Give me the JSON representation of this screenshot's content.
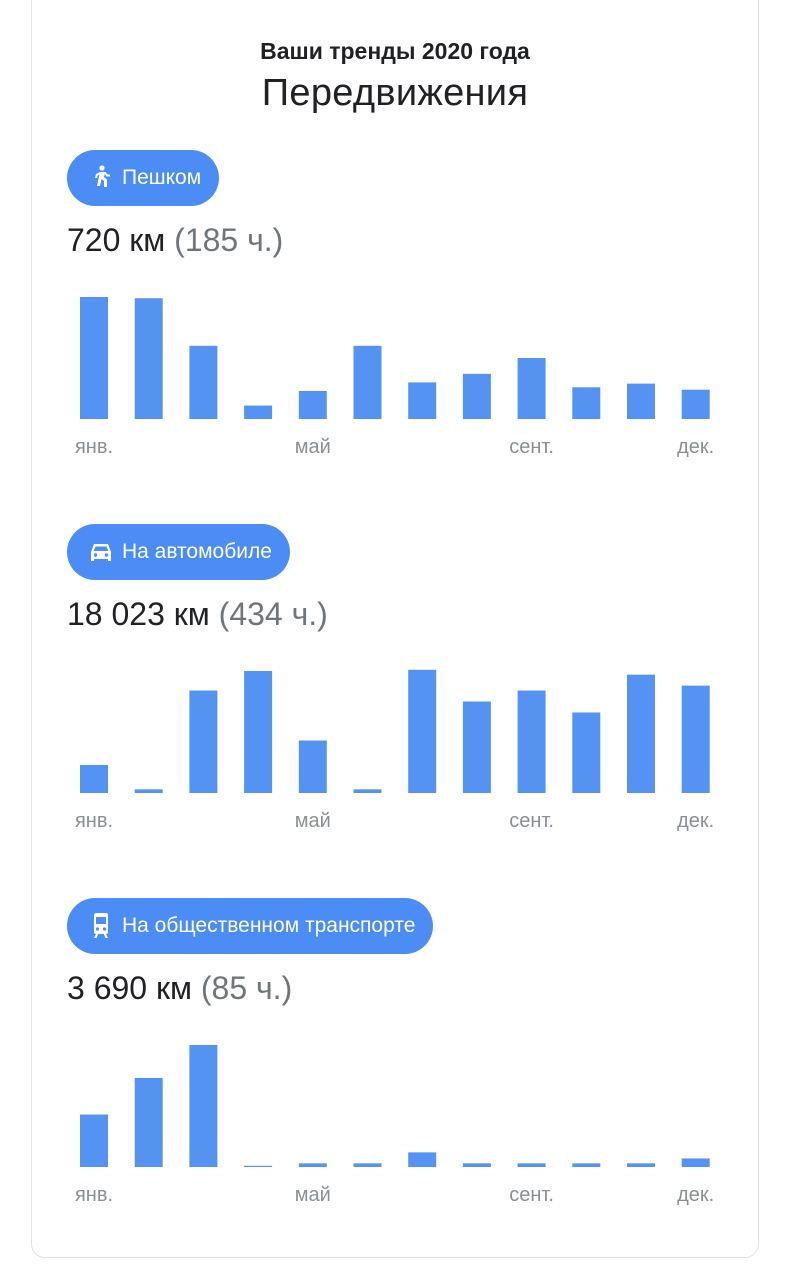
{
  "header": {
    "subtitle": "Ваши тренды 2020 года",
    "title": "Передвижения"
  },
  "colors": {
    "bar": "#5593f2",
    "pill": "#4b8df4",
    "tick": "#8a8f94"
  },
  "sections": [
    {
      "icon": "walking-icon",
      "label": "Пешком",
      "distance": "720 км",
      "duration": "(185 ч.)"
    },
    {
      "icon": "car-icon",
      "label": "На автомобиле",
      "distance": "18 023 км",
      "duration": "(434 ч.)"
    },
    {
      "icon": "train-icon",
      "label": "На общественном транспорте",
      "distance": "3 690 км",
      "duration": "(85 ч.)"
    }
  ],
  "chart_data": [
    {
      "type": "bar",
      "categories": [
        "янв.",
        "",
        "",
        "",
        "май",
        "",
        "",
        "",
        "сент.",
        "",
        "",
        "дек."
      ],
      "values": [
        100,
        99,
        60,
        11,
        23,
        60,
        30,
        37,
        50,
        26,
        29,
        24
      ],
      "ylim": [
        0,
        100
      ],
      "grid": false
    },
    {
      "type": "bar",
      "categories": [
        "янв.",
        "",
        "",
        "",
        "май",
        "",
        "",
        "",
        "сент.",
        "",
        "",
        "дек."
      ],
      "values": [
        23,
        3,
        84,
        100,
        43,
        3,
        101,
        75,
        84,
        66,
        97,
        88
      ],
      "ylim": [
        0,
        100
      ],
      "grid": false
    },
    {
      "type": "bar",
      "categories": [
        "янв.",
        "",
        "",
        "",
        "май",
        "",
        "",
        "",
        "сент.",
        "",
        "",
        "дек."
      ],
      "values": [
        43,
        73,
        100,
        1,
        3,
        3,
        12,
        3,
        3,
        3,
        3,
        7
      ],
      "ylim": [
        0,
        100
      ],
      "grid": false
    }
  ]
}
